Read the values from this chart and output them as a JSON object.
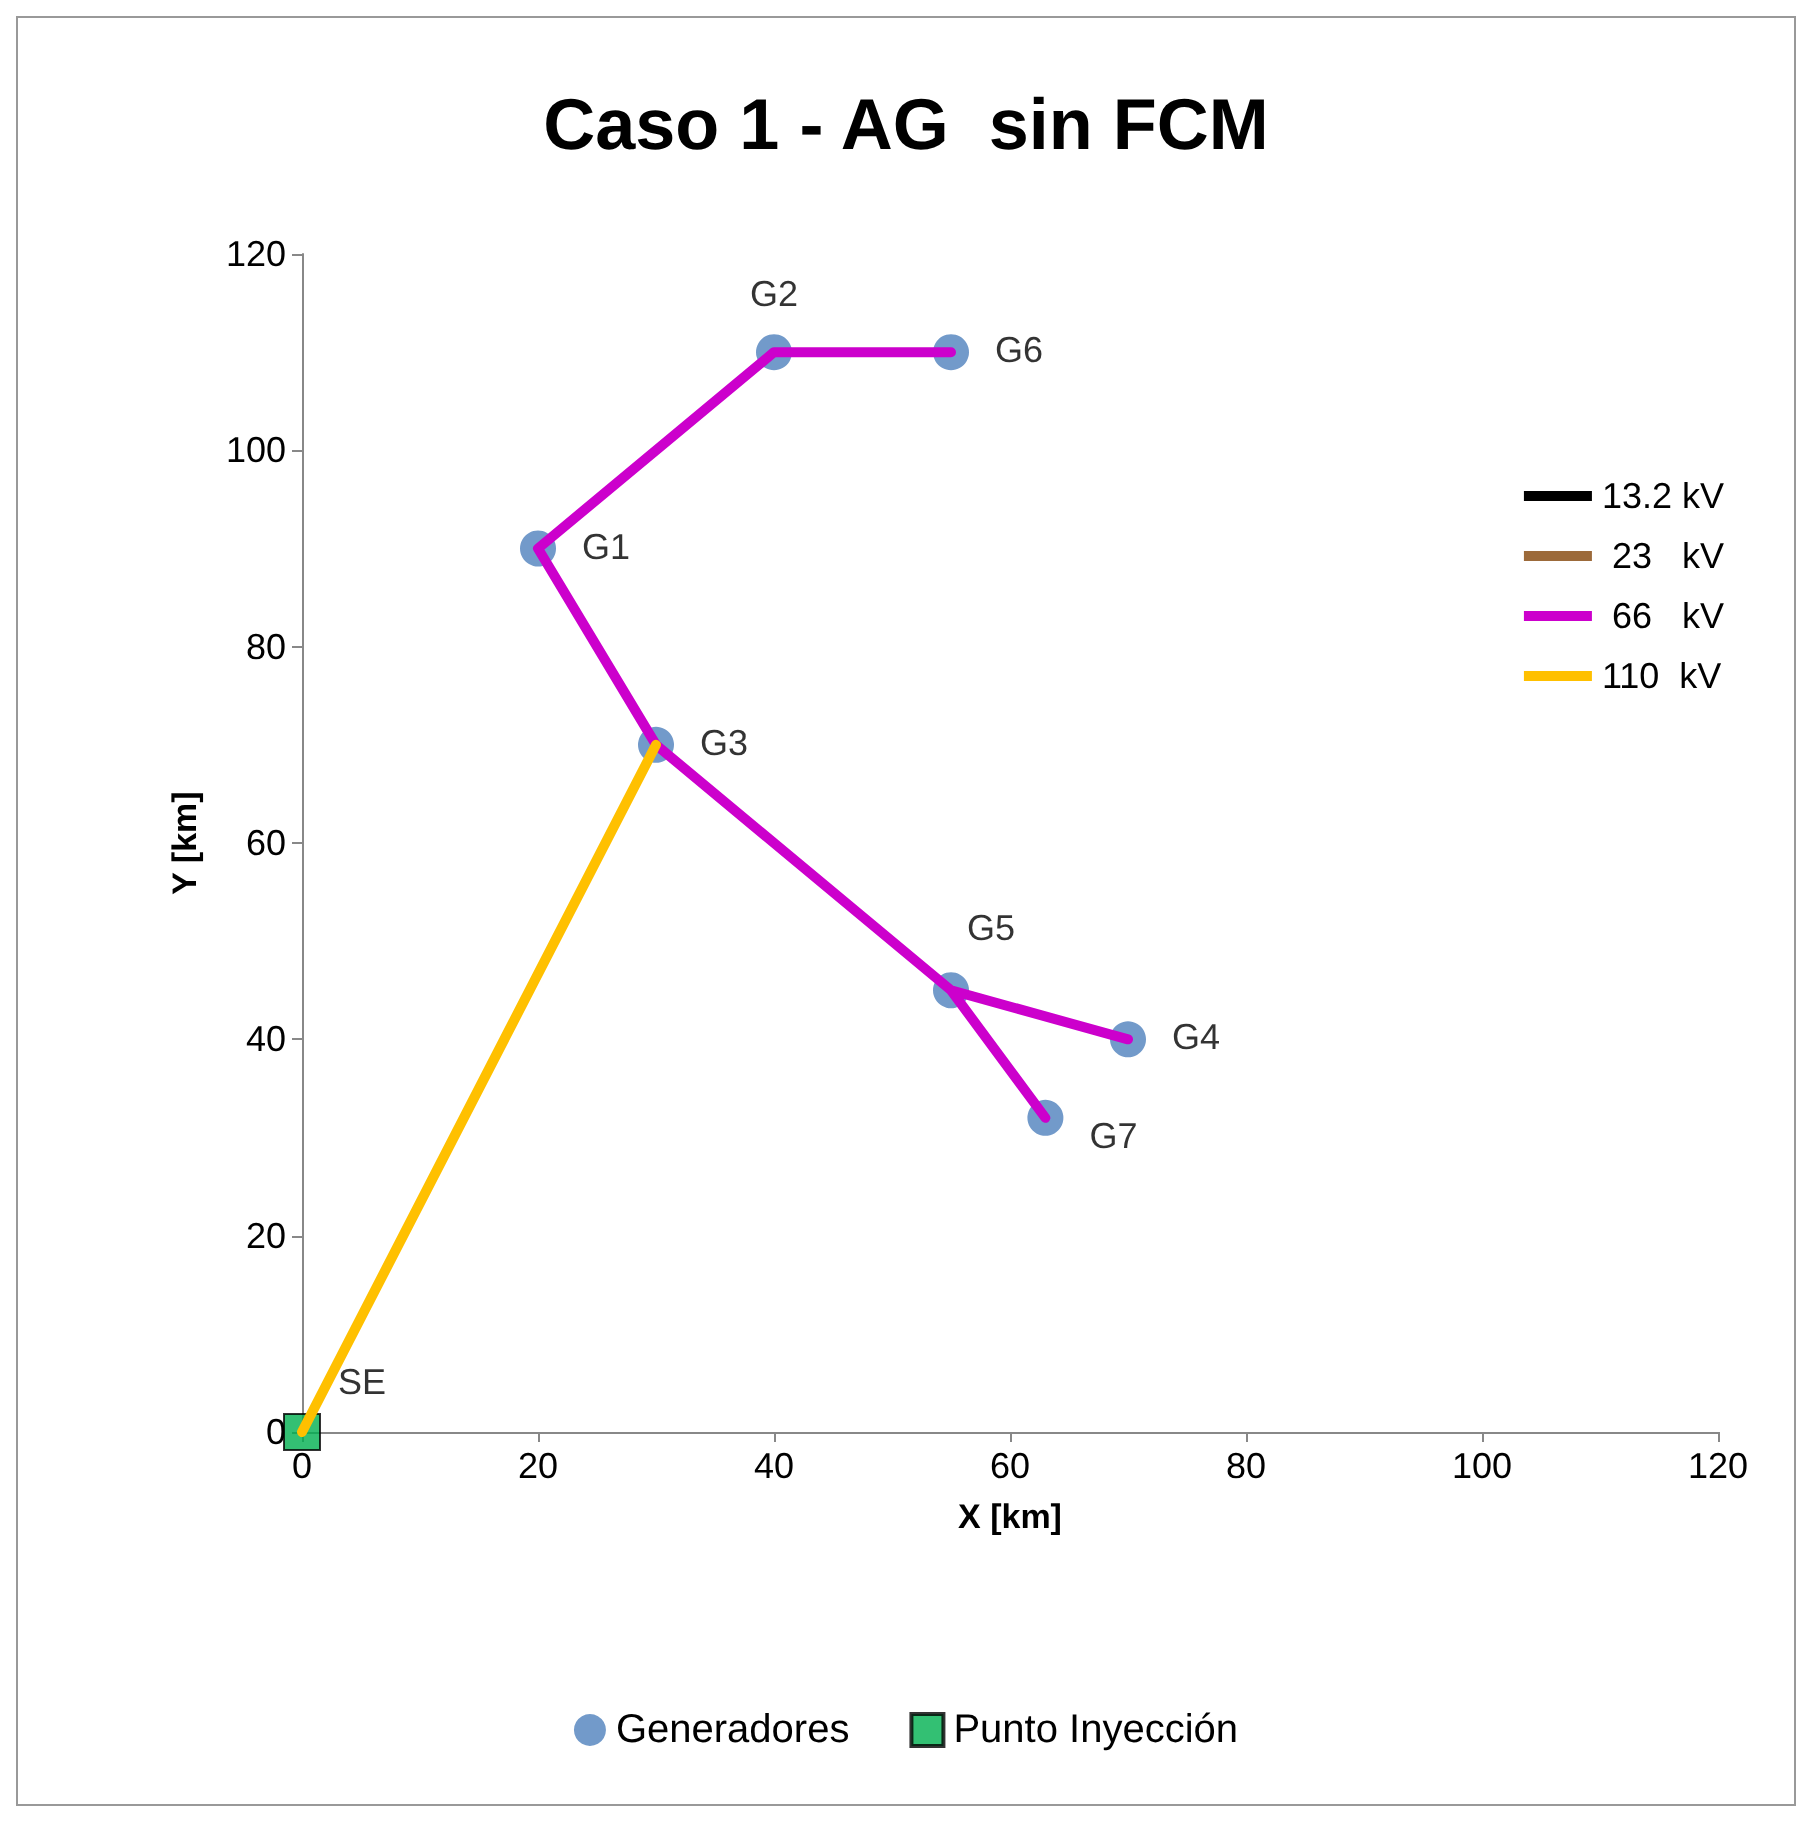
{
  "chart_data": {
    "type": "line",
    "title": "Caso 1 - AG  sin FCM",
    "xlabel": "X [km]",
    "ylabel": "Y [km]",
    "xlim": [
      0,
      120
    ],
    "xticks": [
      0,
      20,
      40,
      60,
      80,
      100,
      120
    ],
    "ylim": [
      0,
      120
    ],
    "yticks": [
      0,
      20,
      40,
      60,
      80,
      100,
      120
    ],
    "grid": false,
    "legend": "right",
    "line_style": "solid",
    "series": [
      {
        "name": "13.2 kV",
        "color": "#000000"
      },
      {
        "name": " 23   kV",
        "color": "#9c6a3a"
      },
      {
        "name": " 66   kV",
        "color": "#cc00cc",
        "x": [
          55,
          40,
          20,
          30,
          55,
          70,
          55,
          63
        ],
        "values": [
          110,
          110,
          90,
          70,
          45,
          40,
          45,
          32
        ]
      },
      {
        "name": "110  kV",
        "color": "#ffc000",
        "x": [
          0,
          30
        ],
        "values": [
          0,
          70
        ]
      },
      {
        "name": "Generadores",
        "color": "#4f81bd",
        "type": "scatter",
        "marker": "circle",
        "x": [
          20,
          40,
          30,
          70,
          55,
          55,
          63
        ],
        "values": [
          90,
          110,
          70,
          40,
          45,
          110,
          32
        ]
      },
      {
        "name": "Punto Inyección",
        "color": "#00b050",
        "type": "scatter",
        "marker": "square",
        "x": [
          0
        ],
        "values": [
          0
        ]
      }
    ],
    "annotations": [
      {
        "text": "G1",
        "x": 20,
        "y": 90
      },
      {
        "text": "G2",
        "x": 40,
        "y": 110
      },
      {
        "text": "G3",
        "x": 30,
        "y": 70
      },
      {
        "text": "G4",
        "x": 70,
        "y": 40
      },
      {
        "text": "G5",
        "x": 55,
        "y": 45
      },
      {
        "text": "G6",
        "x": 55,
        "y": 110
      },
      {
        "text": "G7",
        "x": 63,
        "y": 32
      },
      {
        "text": "SE",
        "x": 0,
        "y": 0
      }
    ]
  }
}
